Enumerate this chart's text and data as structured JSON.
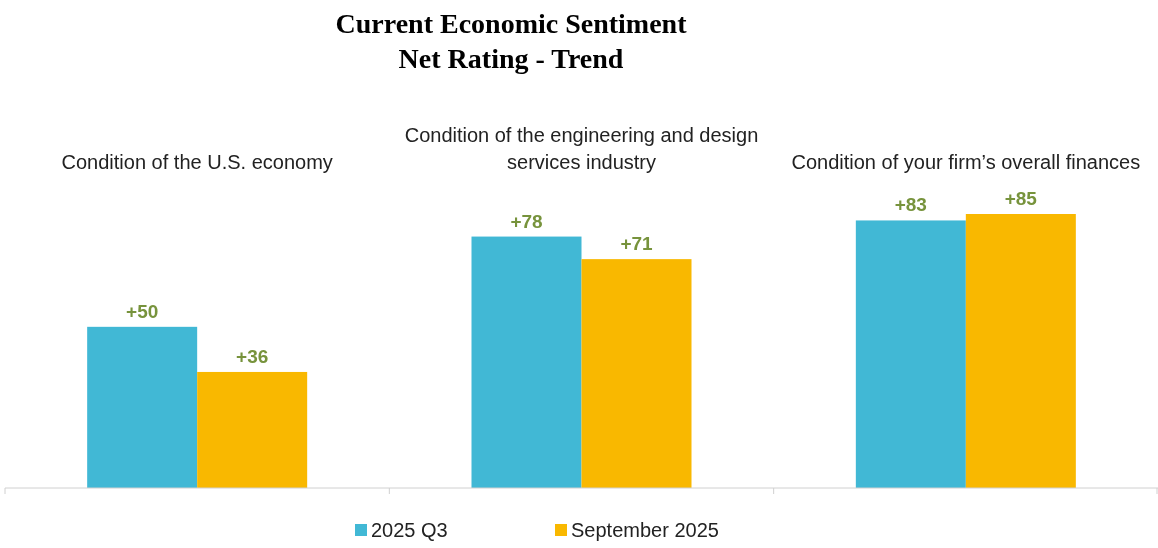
{
  "chart_data": {
    "type": "bar",
    "title": "Current Economic Sentiment",
    "subtitle": "Net Rating - Trend",
    "categories": [
      "Condition of the U.S. economy",
      "Condition of the engineering and design services industry",
      "Condition of your firm’s overall finances"
    ],
    "series": [
      {
        "name": "2025 Q3",
        "color": "#41b8d5",
        "values": [
          50,
          78,
          83
        ],
        "value_labels": [
          "+50",
          "+78",
          "+83"
        ]
      },
      {
        "name": "September 2025",
        "color": "#f9b800",
        "values": [
          36,
          71,
          85
        ],
        "value_labels": [
          "+36",
          "+71",
          "+85"
        ]
      }
    ],
    "legend": "bottom",
    "grid": false
  }
}
